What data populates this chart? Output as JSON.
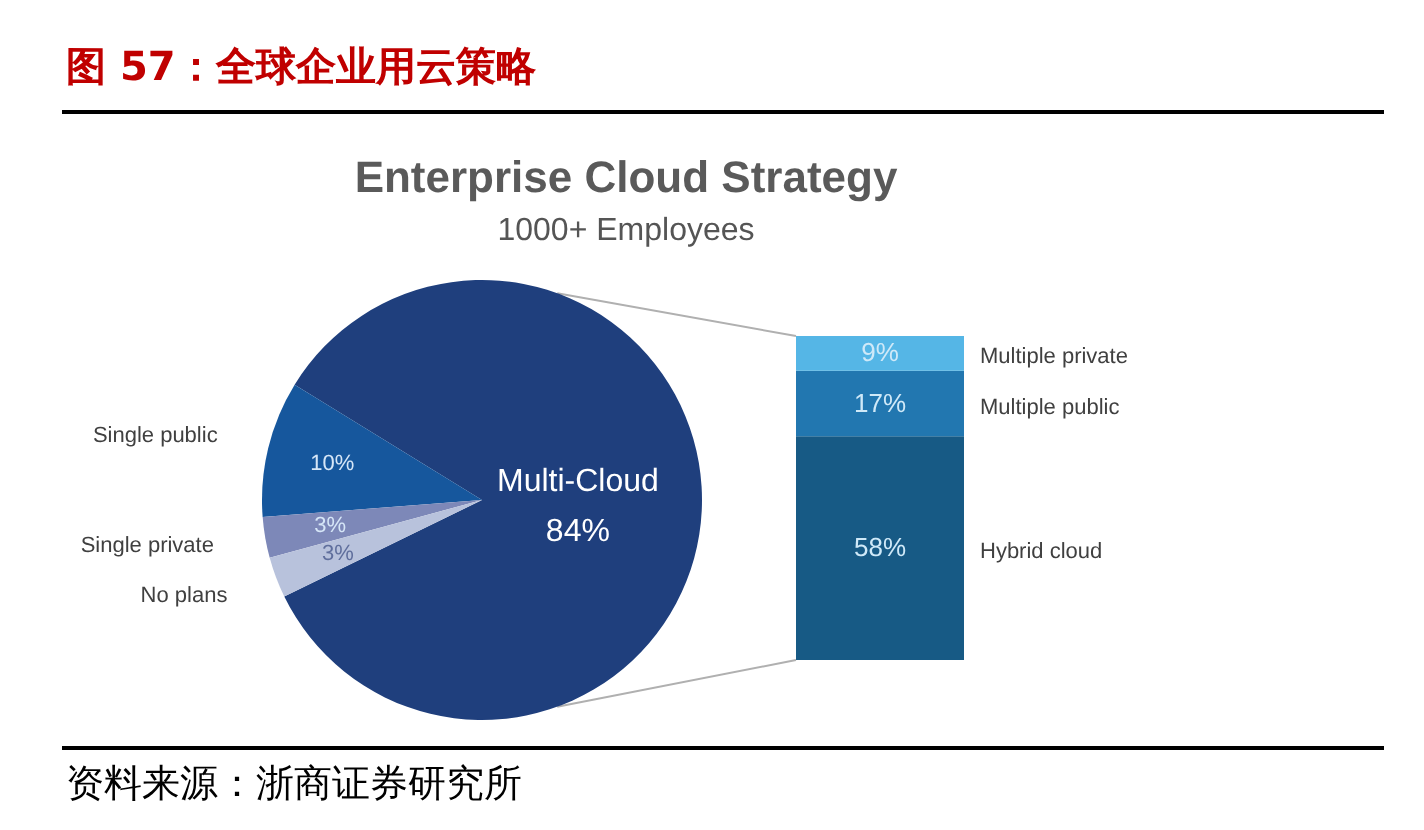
{
  "chart_data": [
    {
      "type": "pie",
      "title": "Enterprise Cloud Strategy",
      "subtitle": "1000+ Employees",
      "categories": [
        "Multi-Cloud",
        "Single public",
        "Single private",
        "No plans"
      ],
      "values": [
        84,
        10,
        3,
        3
      ],
      "colors": [
        "#1f3f7d",
        "#16579d",
        "#7d88b8",
        "#b8c2dc"
      ],
      "value_labels": [
        "84%",
        "10%",
        "3%",
        "3%"
      ],
      "annotations": [
        "图 57：全球企业用云策略",
        "资料来源：浙商证券研究所"
      ]
    },
    {
      "type": "bar",
      "stacked": true,
      "categories": [
        null
      ],
      "series": [
        {
          "name": "Hybrid cloud",
          "color": "#175a85",
          "values": [
            58
          ],
          "value_labels": [
            "58%"
          ]
        },
        {
          "name": "Multiple public",
          "color": "#2277b0",
          "values": [
            17
          ],
          "value_labels": [
            "17%"
          ]
        },
        {
          "name": "Multiple private",
          "color": "#55b6e6",
          "values": [
            9
          ],
          "value_labels": [
            "9%"
          ]
        }
      ]
    }
  ]
}
